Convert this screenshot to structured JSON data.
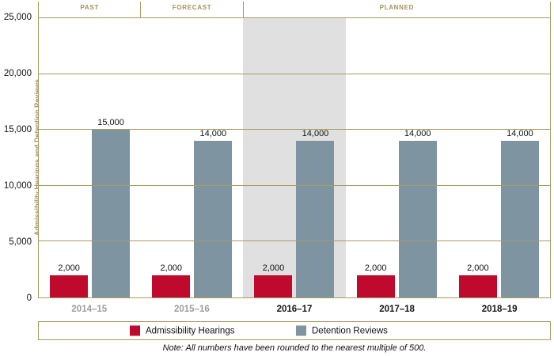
{
  "chart_data": {
    "type": "bar",
    "title": "",
    "categories": [
      "2014–15",
      "2015–16",
      "2016–17",
      "2017–18",
      "2018–19"
    ],
    "category_styles": [
      "past",
      "past",
      "planned",
      "planned",
      "planned"
    ],
    "series": [
      {
        "name": "Admissibility Hearings",
        "color": "#bf0a2e",
        "values": [
          2000,
          2000,
          2000,
          2000,
          2000
        ]
      },
      {
        "name": "Detention Reviews",
        "color": "#7e95a1",
        "values": [
          15000,
          14000,
          14000,
          14000,
          14000
        ]
      }
    ],
    "xlabel": "",
    "ylabel": "Admissibility Hearings and Detention Reviews",
    "ylim": [
      0,
      25000
    ],
    "y_ticks": [
      0,
      5000,
      10000,
      15000,
      20000,
      25000
    ],
    "grid": true,
    "legend_position": "bottom",
    "sections": [
      {
        "label": "PAST",
        "span": 1
      },
      {
        "label": "FORECAST",
        "span": 1
      },
      {
        "label": "PLANNED",
        "span": 3
      }
    ],
    "highlight_category_index": 2,
    "note": "Note: All numbers have been rounded to the nearest multiple of 500.",
    "colors": {
      "axis_gold": "#ab9a62",
      "label_gold": "#a7925a",
      "highlight_gray": "#e0e0e0",
      "past_label_gray": "#9c9c9c"
    }
  }
}
